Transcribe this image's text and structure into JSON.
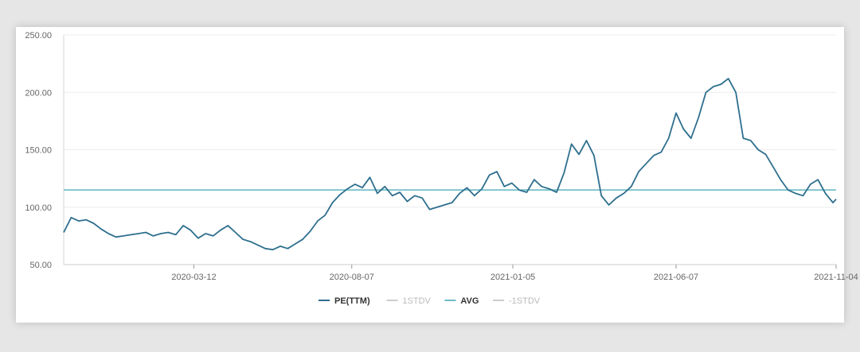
{
  "chart_data": {
    "type": "line",
    "title": "",
    "xlabel": "",
    "ylabel": "",
    "ylim": [
      50,
      250
    ],
    "yticks": [
      "50.00",
      "100.00",
      "150.00",
      "200.00",
      "250.00"
    ],
    "xticks": [
      {
        "label": "2020-03-12",
        "date": "2020-03-12"
      },
      {
        "label": "2020-08-07",
        "date": "2020-08-07"
      },
      {
        "label": "2021-01-05",
        "date": "2021-01-05"
      },
      {
        "label": "2021-06-07",
        "date": "2021-06-07"
      },
      {
        "label": "2021-11-04",
        "date": "2021-11-04"
      }
    ],
    "x_range": [
      "2019-11-11",
      "2021-11-04"
    ],
    "grid": true,
    "legend_position": "bottom",
    "series": [
      {
        "name": "PE(TTM)",
        "color": "#2e6f8e",
        "points": [
          [
            "2019-11-11",
            78
          ],
          [
            "2019-11-18",
            91
          ],
          [
            "2019-11-25",
            88
          ],
          [
            "2019-12-02",
            89
          ],
          [
            "2019-12-09",
            86
          ],
          [
            "2019-12-16",
            81
          ],
          [
            "2019-12-23",
            77
          ],
          [
            "2019-12-30",
            74
          ],
          [
            "2020-01-06",
            75
          ],
          [
            "2020-01-13",
            76
          ],
          [
            "2020-01-20",
            77
          ],
          [
            "2020-01-27",
            78
          ],
          [
            "2020-02-03",
            75
          ],
          [
            "2020-02-10",
            77
          ],
          [
            "2020-02-17",
            78
          ],
          [
            "2020-02-24",
            76
          ],
          [
            "2020-03-02",
            84
          ],
          [
            "2020-03-09",
            80
          ],
          [
            "2020-03-16",
            73
          ],
          [
            "2020-03-23",
            77
          ],
          [
            "2020-03-30",
            75
          ],
          [
            "2020-04-06",
            80
          ],
          [
            "2020-04-13",
            84
          ],
          [
            "2020-04-20",
            78
          ],
          [
            "2020-04-27",
            72
          ],
          [
            "2020-05-04",
            70
          ],
          [
            "2020-05-11",
            67
          ],
          [
            "2020-05-18",
            64
          ],
          [
            "2020-05-25",
            63
          ],
          [
            "2020-06-01",
            66
          ],
          [
            "2020-06-08",
            64
          ],
          [
            "2020-06-15",
            68
          ],
          [
            "2020-06-22",
            72
          ],
          [
            "2020-06-29",
            79
          ],
          [
            "2020-07-06",
            88
          ],
          [
            "2020-07-13",
            93
          ],
          [
            "2020-07-20",
            104
          ],
          [
            "2020-07-27",
            111
          ],
          [
            "2020-08-03",
            116
          ],
          [
            "2020-08-10",
            120
          ],
          [
            "2020-08-17",
            117
          ],
          [
            "2020-08-24",
            126
          ],
          [
            "2020-08-31",
            112
          ],
          [
            "2020-09-07",
            118
          ],
          [
            "2020-09-14",
            110
          ],
          [
            "2020-09-21",
            113
          ],
          [
            "2020-09-28",
            105
          ],
          [
            "2020-10-05",
            110
          ],
          [
            "2020-10-12",
            108
          ],
          [
            "2020-10-19",
            98
          ],
          [
            "2020-10-26",
            100
          ],
          [
            "2020-11-02",
            102
          ],
          [
            "2020-11-09",
            104
          ],
          [
            "2020-11-16",
            112
          ],
          [
            "2020-11-23",
            117
          ],
          [
            "2020-11-30",
            110
          ],
          [
            "2020-12-07",
            116
          ],
          [
            "2020-12-14",
            128
          ],
          [
            "2020-12-21",
            131
          ],
          [
            "2020-12-28",
            118
          ],
          [
            "2021-01-04",
            121
          ],
          [
            "2021-01-11",
            115
          ],
          [
            "2021-01-18",
            113
          ],
          [
            "2021-01-25",
            124
          ],
          [
            "2021-02-01",
            118
          ],
          [
            "2021-02-08",
            116
          ],
          [
            "2021-02-15",
            113
          ],
          [
            "2021-02-22",
            130
          ],
          [
            "2021-03-01",
            155
          ],
          [
            "2021-03-08",
            146
          ],
          [
            "2021-03-15",
            158
          ],
          [
            "2021-03-22",
            145
          ],
          [
            "2021-03-29",
            110
          ],
          [
            "2021-04-05",
            102
          ],
          [
            "2021-04-12",
            108
          ],
          [
            "2021-04-19",
            112
          ],
          [
            "2021-04-26",
            118
          ],
          [
            "2021-05-03",
            131
          ],
          [
            "2021-05-10",
            138
          ],
          [
            "2021-05-17",
            145
          ],
          [
            "2021-05-24",
            148
          ],
          [
            "2021-05-31",
            160
          ],
          [
            "2021-06-07",
            182
          ],
          [
            "2021-06-14",
            168
          ],
          [
            "2021-06-21",
            160
          ],
          [
            "2021-06-28",
            178
          ],
          [
            "2021-07-05",
            200
          ],
          [
            "2021-07-12",
            205
          ],
          [
            "2021-07-19",
            207
          ],
          [
            "2021-07-26",
            212
          ],
          [
            "2021-08-02",
            200
          ],
          [
            "2021-08-09",
            160
          ],
          [
            "2021-08-16",
            158
          ],
          [
            "2021-08-23",
            150
          ],
          [
            "2021-08-30",
            146
          ],
          [
            "2021-09-06",
            135
          ],
          [
            "2021-09-13",
            124
          ],
          [
            "2021-09-20",
            115
          ],
          [
            "2021-09-27",
            112
          ],
          [
            "2021-10-04",
            110
          ],
          [
            "2021-10-11",
            120
          ],
          [
            "2021-10-18",
            124
          ],
          [
            "2021-10-25",
            112
          ],
          [
            "2021-11-01",
            104
          ],
          [
            "2021-11-04",
            107
          ]
        ]
      },
      {
        "name": "1STDV",
        "color": "#cccccc",
        "points": []
      },
      {
        "name": "AVG",
        "color": "#6bbcc4",
        "value": 115
      },
      {
        "name": "-1STDV",
        "color": "#cccccc",
        "points": []
      }
    ]
  }
}
